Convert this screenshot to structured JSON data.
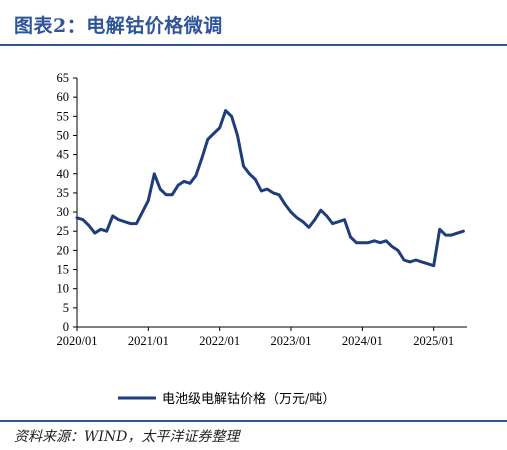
{
  "header": {
    "title": "图表2：电解钴价格微调"
  },
  "footer": {
    "source": "资料来源：WIND，太平洋证券整理"
  },
  "colors": {
    "accent": "#2f5597",
    "series": "#1f3d7a"
  },
  "chart_data": {
    "type": "line",
    "title": "",
    "xlabel": "",
    "ylabel": "",
    "ylim": [
      0,
      65
    ],
    "yticks": [
      "0",
      "5",
      "10",
      "15",
      "20",
      "25",
      "30",
      "35",
      "40",
      "45",
      "50",
      "55",
      "60",
      "65"
    ],
    "xtick_labels": [
      "2020/01",
      "2021/01",
      "2022/01",
      "2023/01",
      "2024/01",
      "2025/01"
    ],
    "x_start": "2020/01",
    "x_end": "2025/06",
    "grid": false,
    "legend_position": "bottom",
    "series": [
      {
        "name": "电池级电解钴价格（万元/吨）",
        "x": [
          "2020/01",
          "2020/02",
          "2020/03",
          "2020/04",
          "2020/05",
          "2020/06",
          "2020/07",
          "2020/08",
          "2020/09",
          "2020/10",
          "2020/11",
          "2020/12",
          "2021/01",
          "2021/02",
          "2021/03",
          "2021/04",
          "2021/05",
          "2021/06",
          "2021/07",
          "2021/08",
          "2021/09",
          "2021/10",
          "2021/11",
          "2021/12",
          "2022/01",
          "2022/02",
          "2022/03",
          "2022/04",
          "2022/05",
          "2022/06",
          "2022/07",
          "2022/08",
          "2022/09",
          "2022/10",
          "2022/11",
          "2022/12",
          "2023/01",
          "2023/02",
          "2023/03",
          "2023/04",
          "2023/05",
          "2023/06",
          "2023/07",
          "2023/08",
          "2023/09",
          "2023/10",
          "2023/11",
          "2023/12",
          "2024/01",
          "2024/02",
          "2024/03",
          "2024/04",
          "2024/05",
          "2024/06",
          "2024/07",
          "2024/08",
          "2024/09",
          "2024/10",
          "2024/11",
          "2024/12",
          "2025/01",
          "2025/02",
          "2025/03",
          "2025/04",
          "2025/05",
          "2025/06"
        ],
        "values": [
          28.5,
          28.0,
          26.5,
          24.5,
          25.5,
          25.0,
          29.0,
          28.0,
          27.5,
          27.0,
          27.0,
          30.0,
          33.0,
          40.0,
          36.0,
          34.5,
          34.5,
          37.0,
          38.0,
          37.5,
          39.5,
          44.0,
          49.0,
          50.5,
          52.0,
          56.5,
          55.0,
          50.0,
          42.0,
          40.0,
          38.5,
          35.5,
          36.0,
          35.0,
          34.5,
          32.0,
          30.0,
          28.5,
          27.5,
          26.0,
          28.0,
          30.5,
          29.0,
          27.0,
          27.5,
          28.0,
          23.5,
          22.0,
          22.0,
          22.0,
          22.5,
          22.0,
          22.5,
          21.0,
          20.0,
          17.5,
          17.0,
          17.5,
          17.0,
          16.5,
          16.0,
          25.5,
          24.0,
          24.0,
          24.5,
          25.0
        ]
      }
    ]
  }
}
